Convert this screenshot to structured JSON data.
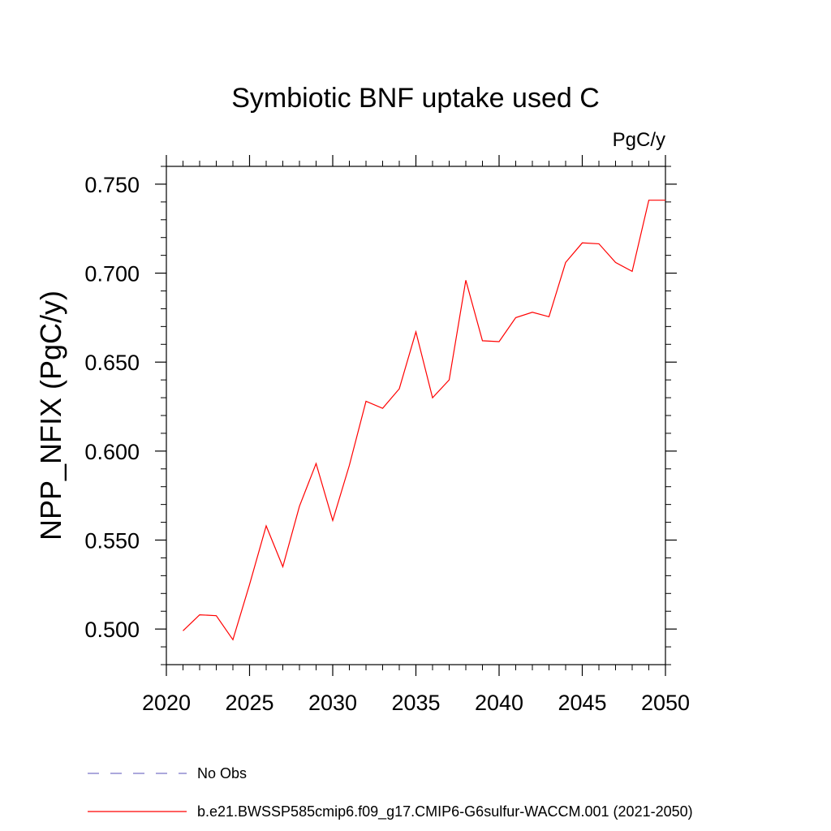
{
  "chart_data": {
    "type": "line",
    "title": "Symbiotic BNF uptake used C",
    "units": "PgC/y",
    "ylabel": "NPP_NFIX  (PgC/y)",
    "xlabel": "",
    "xlim": [
      2020,
      2050
    ],
    "ylim": [
      0.48,
      0.76
    ],
    "x_ticks": [
      2020,
      2025,
      2030,
      2035,
      2040,
      2045,
      2050
    ],
    "x_tick_labels": [
      "2020",
      "2025",
      "2030",
      "2035",
      "2040",
      "2045",
      "2050"
    ],
    "y_ticks": [
      0.5,
      0.55,
      0.6,
      0.65,
      0.7,
      0.75
    ],
    "y_tick_labels": [
      "0.500",
      "0.550",
      "0.600",
      "0.650",
      "0.700",
      "0.750"
    ],
    "grid": false,
    "legend_position": "bottom",
    "series": [
      {
        "name": "No Obs",
        "color": "#7b73c8",
        "dash": "dashed",
        "x": [],
        "values": []
      },
      {
        "name": "b.e21.BWSSP585cmip6.f09_g17.CMIP6-G6sulfur-WACCM.001 (2021-2050)",
        "color": "#ff0000",
        "dash": "solid",
        "x": [
          2021,
          2022,
          2023,
          2024,
          2025,
          2026,
          2027,
          2028,
          2029,
          2030,
          2031,
          2032,
          2033,
          2034,
          2035,
          2036,
          2037,
          2038,
          2039,
          2040,
          2041,
          2042,
          2043,
          2044,
          2045,
          2046,
          2047,
          2048,
          2049,
          2050
        ],
        "values": [
          0.499,
          0.508,
          0.5075,
          0.494,
          0.525,
          0.558,
          0.535,
          0.569,
          0.593,
          0.561,
          0.592,
          0.628,
          0.624,
          0.635,
          0.667,
          0.63,
          0.64,
          0.696,
          0.662,
          0.6615,
          0.675,
          0.678,
          0.6755,
          0.706,
          0.717,
          0.7165,
          0.706,
          0.701,
          0.741,
          0.741
        ]
      }
    ]
  }
}
